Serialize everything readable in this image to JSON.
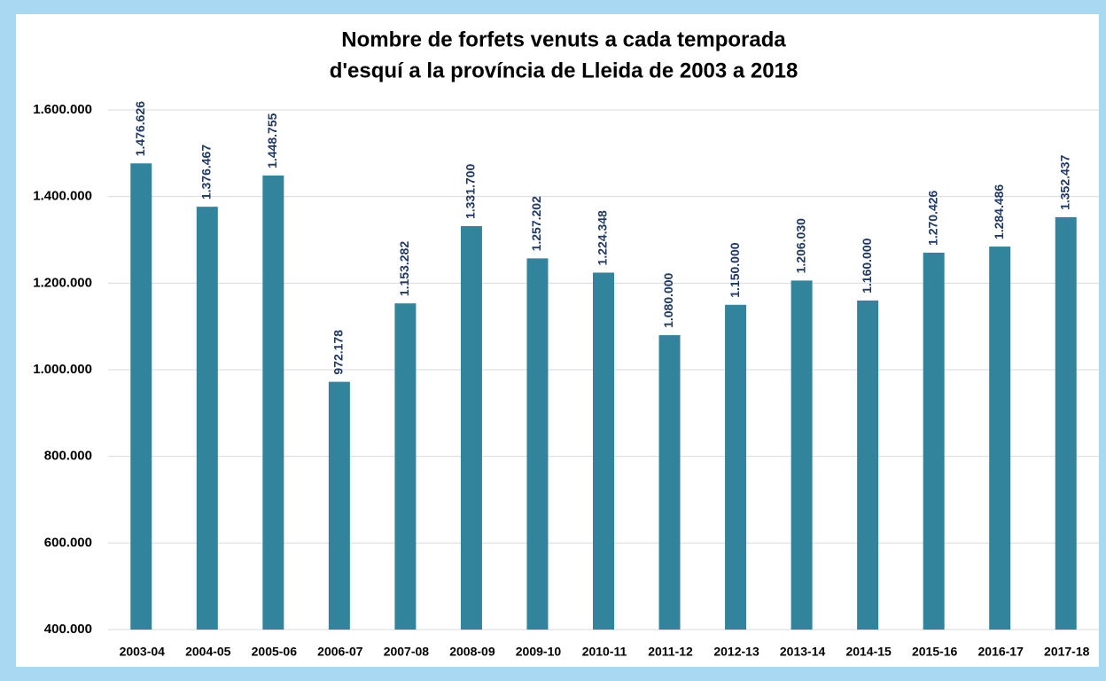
{
  "chart_data": {
    "type": "bar",
    "title": [
      "Nombre de forfets venuts a cada temporada",
      "d'esquí a la província de Lleida de 2003 a 2018"
    ],
    "categories": [
      "2003-04",
      "2004-05",
      "2005-06",
      "2006-07",
      "2007-08",
      "2008-09",
      "2009-10",
      "2010-11",
      "2011-12",
      "2012-13",
      "2013-14",
      "2014-15",
      "2015-16",
      "2016-17",
      "2017-18"
    ],
    "values": [
      1476626,
      1376467,
      1448755,
      972178,
      1153282,
      1331700,
      1257202,
      1224348,
      1080000,
      1150000,
      1206030,
      1160000,
      1270426,
      1284486,
      1352437
    ],
    "value_labels": [
      "1.476.626",
      "1.376.467",
      "1.448.755",
      "972.178",
      "1.153.282",
      "1.331.700",
      "1.257.202",
      "1.224.348",
      "1.080.000",
      "1.150.000",
      "1.206.030",
      "1.160.000",
      "1.270.426",
      "1.284.486",
      "1.352.437"
    ],
    "color": "#31849b",
    "ylim": [
      400000,
      1600000
    ],
    "yticks": [
      {
        "value": 400000,
        "label": "400.000"
      },
      {
        "value": 600000,
        "label": "600.000"
      },
      {
        "value": 800000,
        "label": "800.000"
      },
      {
        "value": 1000000,
        "label": "1.000.000"
      },
      {
        "value": 1200000,
        "label": "1.200.000"
      },
      {
        "value": 1400000,
        "label": "1.400.000"
      },
      {
        "value": 1600000,
        "label": "1.600.000"
      }
    ],
    "grid": true
  }
}
